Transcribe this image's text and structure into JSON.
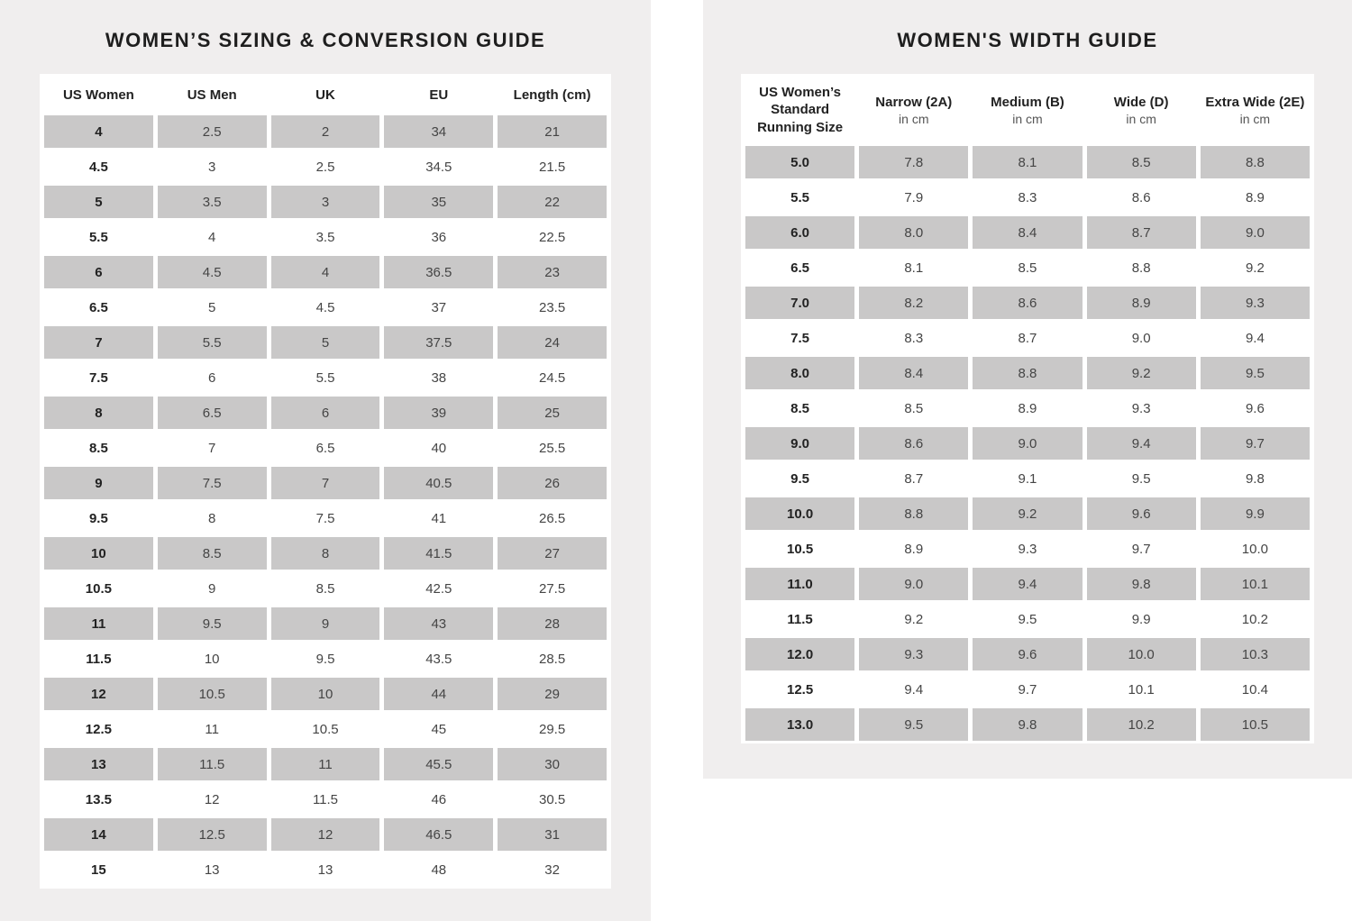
{
  "colors": {
    "panel_background": "#f0eeee",
    "shaded_row": "#c9c8c8",
    "title_text": "#1e1e1e",
    "data_text": "#454545"
  },
  "chart_data": [
    {
      "type": "table",
      "title": "WOMEN’S SIZING & CONVERSION GUIDE",
      "columns": [
        "US Women",
        "US Men",
        "UK",
        "EU",
        "Length (cm)"
      ],
      "rows": [
        [
          "4",
          "2.5",
          "2",
          "34",
          "21"
        ],
        [
          "4.5",
          "3",
          "2.5",
          "34.5",
          "21.5"
        ],
        [
          "5",
          "3.5",
          "3",
          "35",
          "22"
        ],
        [
          "5.5",
          "4",
          "3.5",
          "36",
          "22.5"
        ],
        [
          "6",
          "4.5",
          "4",
          "36.5",
          "23"
        ],
        [
          "6.5",
          "5",
          "4.5",
          "37",
          "23.5"
        ],
        [
          "7",
          "5.5",
          "5",
          "37.5",
          "24"
        ],
        [
          "7.5",
          "6",
          "5.5",
          "38",
          "24.5"
        ],
        [
          "8",
          "6.5",
          "6",
          "39",
          "25"
        ],
        [
          "8.5",
          "7",
          "6.5",
          "40",
          "25.5"
        ],
        [
          "9",
          "7.5",
          "7",
          "40.5",
          "26"
        ],
        [
          "9.5",
          "8",
          "7.5",
          "41",
          "26.5"
        ],
        [
          "10",
          "8.5",
          "8",
          "41.5",
          "27"
        ],
        [
          "10.5",
          "9",
          "8.5",
          "42.5",
          "27.5"
        ],
        [
          "11",
          "9.5",
          "9",
          "43",
          "28"
        ],
        [
          "11.5",
          "10",
          "9.5",
          "43.5",
          "28.5"
        ],
        [
          "12",
          "10.5",
          "10",
          "44",
          "29"
        ],
        [
          "12.5",
          "11",
          "10.5",
          "45",
          "29.5"
        ],
        [
          "13",
          "11.5",
          "11",
          "45.5",
          "30"
        ],
        [
          "13.5",
          "12",
          "11.5",
          "46",
          "30.5"
        ],
        [
          "14",
          "12.5",
          "12",
          "46.5",
          "31"
        ],
        [
          "15",
          "13",
          "13",
          "48",
          "32"
        ]
      ],
      "layout_hints": {
        "shading": "alternating rows starting with first data row",
        "grid": "off"
      }
    },
    {
      "type": "table",
      "title": "WOMEN'S WIDTH GUIDE",
      "columns": [
        {
          "label": "US Women’s Standard Running Size",
          "sub": ""
        },
        {
          "label": "Narrow (2A)",
          "sub": "in cm"
        },
        {
          "label": "Medium (B)",
          "sub": "in cm"
        },
        {
          "label": "Wide (D)",
          "sub": "in cm"
        },
        {
          "label": "Extra Wide (2E)",
          "sub": "in cm"
        }
      ],
      "rows": [
        [
          "5.0",
          "7.8",
          "8.1",
          "8.5",
          "8.8"
        ],
        [
          "5.5",
          "7.9",
          "8.3",
          "8.6",
          "8.9"
        ],
        [
          "6.0",
          "8.0",
          "8.4",
          "8.7",
          "9.0"
        ],
        [
          "6.5",
          "8.1",
          "8.5",
          "8.8",
          "9.2"
        ],
        [
          "7.0",
          "8.2",
          "8.6",
          "8.9",
          "9.3"
        ],
        [
          "7.5",
          "8.3",
          "8.7",
          "9.0",
          "9.4"
        ],
        [
          "8.0",
          "8.4",
          "8.8",
          "9.2",
          "9.5"
        ],
        [
          "8.5",
          "8.5",
          "8.9",
          "9.3",
          "9.6"
        ],
        [
          "9.0",
          "8.6",
          "9.0",
          "9.4",
          "9.7"
        ],
        [
          "9.5",
          "8.7",
          "9.1",
          "9.5",
          "9.8"
        ],
        [
          "10.0",
          "8.8",
          "9.2",
          "9.6",
          "9.9"
        ],
        [
          "10.5",
          "8.9",
          "9.3",
          "9.7",
          "10.0"
        ],
        [
          "11.0",
          "9.0",
          "9.4",
          "9.8",
          "10.1"
        ],
        [
          "11.5",
          "9.2",
          "9.5",
          "9.9",
          "10.2"
        ],
        [
          "12.0",
          "9.3",
          "9.6",
          "10.0",
          "10.3"
        ],
        [
          "12.5",
          "9.4",
          "9.7",
          "10.1",
          "10.4"
        ],
        [
          "13.0",
          "9.5",
          "9.8",
          "10.2",
          "10.5"
        ]
      ],
      "layout_hints": {
        "shading": "alternating rows starting with first data row",
        "grid": "off"
      }
    }
  ]
}
